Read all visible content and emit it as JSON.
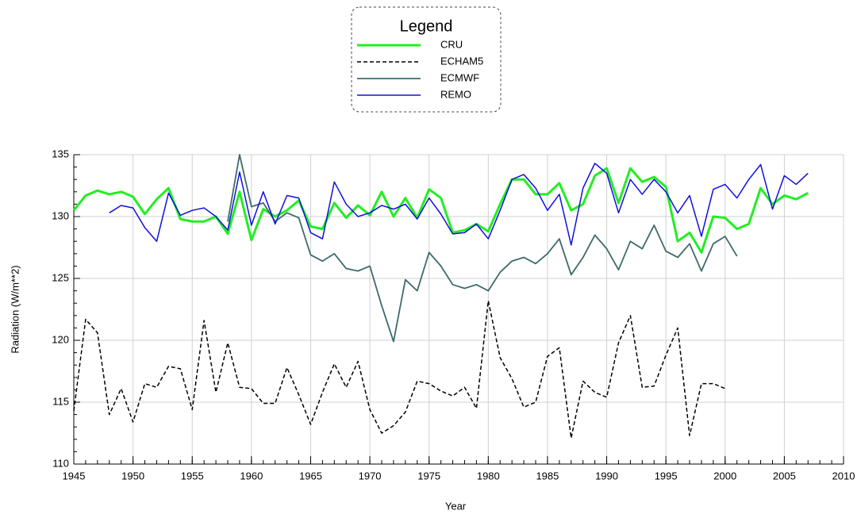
{
  "chart_data": {
    "type": "line",
    "legend_title": "Legend",
    "x_label": "Year",
    "y_label": "Radiation (W/m**2)",
    "xlim": [
      1945,
      2010
    ],
    "xticks": [
      1945,
      1950,
      1955,
      1960,
      1965,
      1970,
      1975,
      1980,
      1985,
      1990,
      1995,
      2000,
      2005,
      2010
    ],
    "ylim": [
      110,
      135
    ],
    "yticks": [
      110,
      115,
      120,
      125,
      130,
      135
    ],
    "grid": true,
    "legend": "top",
    "x": [
      1945,
      1946,
      1947,
      1948,
      1949,
      1950,
      1951,
      1952,
      1953,
      1954,
      1955,
      1956,
      1957,
      1958,
      1959,
      1960,
      1961,
      1962,
      1963,
      1964,
      1965,
      1966,
      1967,
      1968,
      1969,
      1970,
      1971,
      1972,
      1973,
      1974,
      1975,
      1976,
      1977,
      1978,
      1979,
      1980,
      1981,
      1982,
      1983,
      1984,
      1985,
      1986,
      1987,
      1988,
      1989,
      1990,
      1991,
      1992,
      1993,
      1994,
      1995,
      1996,
      1997,
      1998,
      1999,
      2000,
      2001,
      2002,
      2003,
      2004,
      2005,
      2006,
      2007
    ],
    "series": [
      {
        "name": "CRU",
        "color": "#22ee22",
        "width": 3,
        "dashed": false,
        "values": [
          130.5,
          131.7,
          132.1,
          131.8,
          132.0,
          131.6,
          130.2,
          131.4,
          132.3,
          129.8,
          129.6,
          129.6,
          130.0,
          128.6,
          132.0,
          128.1,
          130.6,
          130.0,
          130.5,
          131.3,
          129.2,
          129.0,
          131.1,
          129.9,
          130.9,
          130.1,
          132.0,
          130.0,
          131.5,
          129.9,
          132.2,
          131.5,
          128.7,
          128.9,
          129.4,
          128.8,
          131.0,
          133.0,
          133.0,
          131.8,
          131.8,
          132.7,
          130.5,
          131.0,
          133.3,
          133.9,
          131.1,
          133.9,
          132.8,
          133.2,
          132.4,
          128.0,
          128.7,
          127.1,
          130.0,
          129.9,
          129.0,
          129.4,
          132.3,
          131.0,
          131.7,
          131.4,
          131.9
        ]
      },
      {
        "name": "ECHAM5",
        "color": "#000000",
        "width": 1.5,
        "dashed": true,
        "values": [
          114.3,
          121.7,
          120.6,
          114.0,
          116.1,
          113.4,
          116.5,
          116.2,
          117.9,
          117.7,
          114.4,
          121.6,
          115.8,
          119.8,
          116.2,
          116.1,
          114.9,
          114.9,
          117.8,
          115.6,
          113.2,
          115.8,
          118.1,
          116.2,
          118.3,
          114.4,
          112.5,
          113.1,
          114.2,
          116.7,
          116.5,
          115.9,
          115.5,
          116.2,
          114.5,
          123.2,
          118.6,
          116.9,
          114.6,
          115.0,
          118.7,
          119.4,
          112.1,
          116.7,
          115.8,
          115.4,
          119.8,
          122.0,
          116.2,
          116.3,
          118.8,
          121.0,
          112.3,
          116.5,
          116.5,
          116.1,
          null,
          null,
          null,
          null,
          null,
          null,
          null
        ]
      },
      {
        "name": "ECMWF",
        "color": "#3d6b6b",
        "width": 1.8,
        "dashed": false,
        "values": [
          null,
          null,
          null,
          null,
          null,
          null,
          null,
          null,
          null,
          null,
          null,
          null,
          null,
          129.6,
          135.0,
          130.8,
          131.1,
          129.6,
          130.3,
          129.9,
          126.9,
          126.4,
          127.0,
          125.8,
          125.6,
          126.0,
          122.8,
          119.9,
          124.9,
          124.0,
          127.1,
          126.0,
          124.5,
          124.2,
          124.5,
          124.0,
          125.5,
          126.4,
          126.7,
          126.2,
          127.0,
          128.2,
          125.3,
          126.7,
          128.5,
          127.4,
          125.7,
          128.0,
          127.4,
          129.3,
          127.2,
          126.7,
          127.8,
          125.6,
          127.8,
          128.4,
          126.8,
          null,
          null,
          null,
          null,
          null,
          null
        ]
      },
      {
        "name": "REMO",
        "color": "#1010dd",
        "width": 1.5,
        "dashed": false,
        "values": [
          null,
          null,
          null,
          130.3,
          130.9,
          130.7,
          129.1,
          128.0,
          131.9,
          130.1,
          130.5,
          130.7,
          130.0,
          128.9,
          133.6,
          129.3,
          132.0,
          129.4,
          131.7,
          131.5,
          128.7,
          128.2,
          132.8,
          131.0,
          130.0,
          130.3,
          130.9,
          130.6,
          131.0,
          129.8,
          131.5,
          130.2,
          128.6,
          128.7,
          129.4,
          128.2,
          130.5,
          133.0,
          133.4,
          132.3,
          130.5,
          131.8,
          127.7,
          132.3,
          134.3,
          133.5,
          130.3,
          133.0,
          131.8,
          133.0,
          132.0,
          130.3,
          131.7,
          128.4,
          132.2,
          132.6,
          131.5,
          133.0,
          134.2,
          130.6,
          133.3,
          132.6,
          133.5
        ]
      }
    ]
  }
}
